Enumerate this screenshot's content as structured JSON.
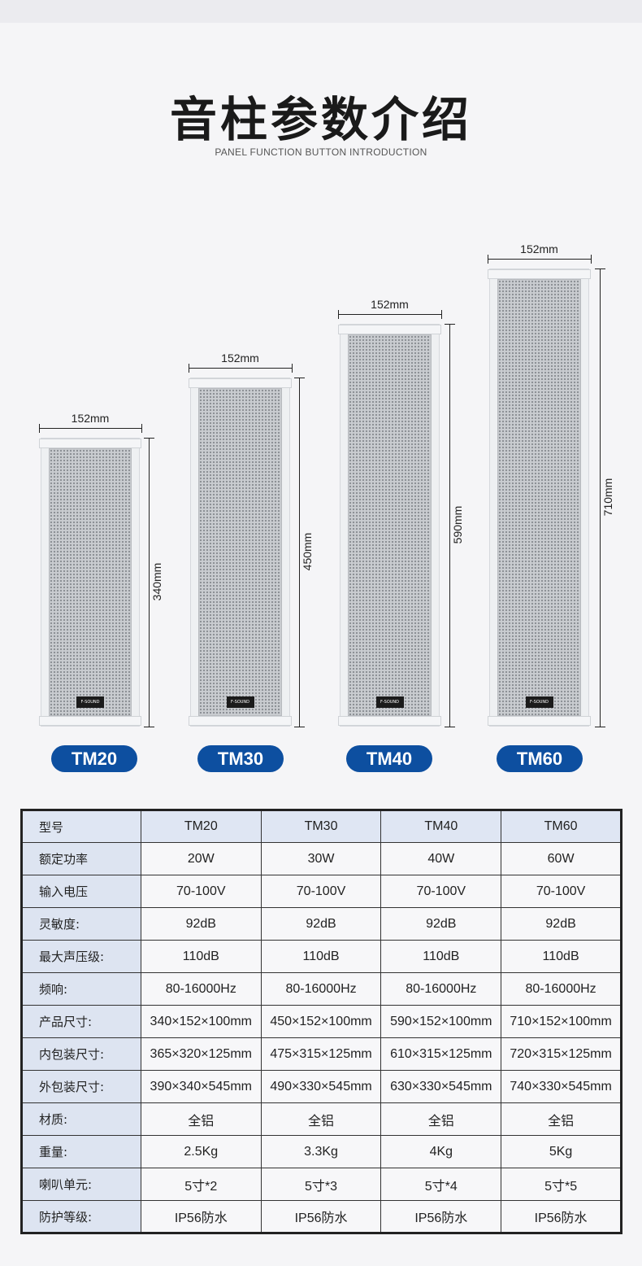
{
  "header": {
    "title": "音柱参数介绍",
    "subtitle": "PANEL FUNCTION BUTTON INTRODUCTION"
  },
  "speakers": [
    {
      "model": "TM20",
      "width": "152mm",
      "height": "340mm"
    },
    {
      "model": "TM30",
      "width": "152mm",
      "height": "450mm"
    },
    {
      "model": "TM40",
      "width": "152mm",
      "height": "590mm"
    },
    {
      "model": "TM60",
      "width": "152mm",
      "height": "710mm"
    }
  ],
  "brand_logo": "F-SOUND",
  "accent_color": "#0d4fa0",
  "table": {
    "rows": [
      [
        "型号",
        "TM20",
        "TM30",
        "TM40",
        "TM60"
      ],
      [
        "额定功率",
        "20W",
        "30W",
        "40W",
        "60W"
      ],
      [
        "输入电压",
        "70-100V",
        "70-100V",
        "70-100V",
        "70-100V"
      ],
      [
        "灵敏度:",
        "92dB",
        "92dB",
        "92dB",
        "92dB"
      ],
      [
        "最大声压级:",
        "110dB",
        "110dB",
        "110dB",
        "110dB"
      ],
      [
        "频响:",
        "80-16000Hz",
        "80-16000Hz",
        "80-16000Hz",
        "80-16000Hz"
      ],
      [
        "产品尺寸:",
        "340×152×100mm",
        "450×152×100mm",
        "590×152×100mm",
        "710×152×100mm"
      ],
      [
        "内包装尺寸:",
        "365×320×125mm",
        "475×315×125mm",
        "610×315×125mm",
        "720×315×125mm"
      ],
      [
        "外包装尺寸:",
        "390×340×545mm",
        "490×330×545mm",
        "630×330×545mm",
        "740×330×545mm"
      ],
      [
        "材质:",
        "全铝",
        "全铝",
        "全铝",
        "全铝"
      ],
      [
        "重量:",
        "2.5Kg",
        "3.3Kg",
        "4Kg",
        "5Kg"
      ],
      [
        "喇叭单元:",
        "5寸*2",
        "5寸*3",
        "5寸*4",
        "5寸*5"
      ],
      [
        "防护等级:",
        "IP56防水",
        "IP56防水",
        "IP56防水",
        "IP56防水"
      ]
    ]
  }
}
